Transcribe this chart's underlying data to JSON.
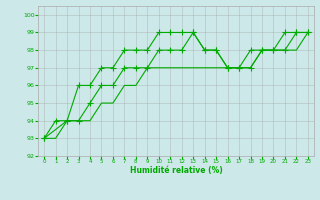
{
  "xlabel": "Humidité relative (%)",
  "xlim": [
    -0.5,
    23.5
  ],
  "ylim": [
    92,
    100.5
  ],
  "yticks": [
    92,
    93,
    94,
    95,
    96,
    97,
    98,
    99,
    100
  ],
  "xticks": [
    0,
    1,
    2,
    3,
    4,
    5,
    6,
    7,
    8,
    9,
    10,
    11,
    12,
    13,
    14,
    15,
    16,
    17,
    18,
    19,
    20,
    21,
    22,
    23
  ],
  "background_color": "#cce8e8",
  "grid_color": "#aaaaaa",
  "line_color": "#00aa00",
  "line1_x": [
    0,
    1,
    2,
    3,
    4,
    5,
    6,
    7,
    8,
    9,
    10,
    11,
    12,
    13,
    14,
    15,
    16,
    17,
    18,
    19,
    20,
    21,
    22,
    23
  ],
  "line1_y": [
    93,
    94,
    94,
    96,
    96,
    97,
    97,
    98,
    98,
    98,
    99,
    99,
    99,
    99,
    98,
    98,
    97,
    97,
    98,
    98,
    98,
    99,
    99,
    99
  ],
  "line2_x": [
    0,
    2,
    3,
    4,
    5,
    6,
    7,
    8,
    9,
    10,
    11,
    12,
    13,
    14,
    15,
    16,
    17,
    18,
    19,
    20,
    21,
    22,
    23
  ],
  "line2_y": [
    93,
    94,
    94,
    95,
    96,
    96,
    97,
    97,
    97,
    98,
    98,
    98,
    99,
    98,
    98,
    97,
    97,
    97,
    98,
    98,
    98,
    99,
    99
  ],
  "line3_x": [
    0,
    1,
    2,
    3,
    4,
    5,
    6,
    7,
    8,
    9,
    10,
    11,
    12,
    13,
    14,
    15,
    16,
    17,
    18,
    19,
    20,
    21,
    22,
    23
  ],
  "line3_y": [
    93,
    93,
    94,
    94,
    94,
    95,
    95,
    96,
    96,
    97,
    97,
    97,
    97,
    97,
    97,
    97,
    97,
    97,
    97,
    98,
    98,
    98,
    98,
    99
  ],
  "figsize": [
    3.2,
    2.0
  ],
  "dpi": 100
}
